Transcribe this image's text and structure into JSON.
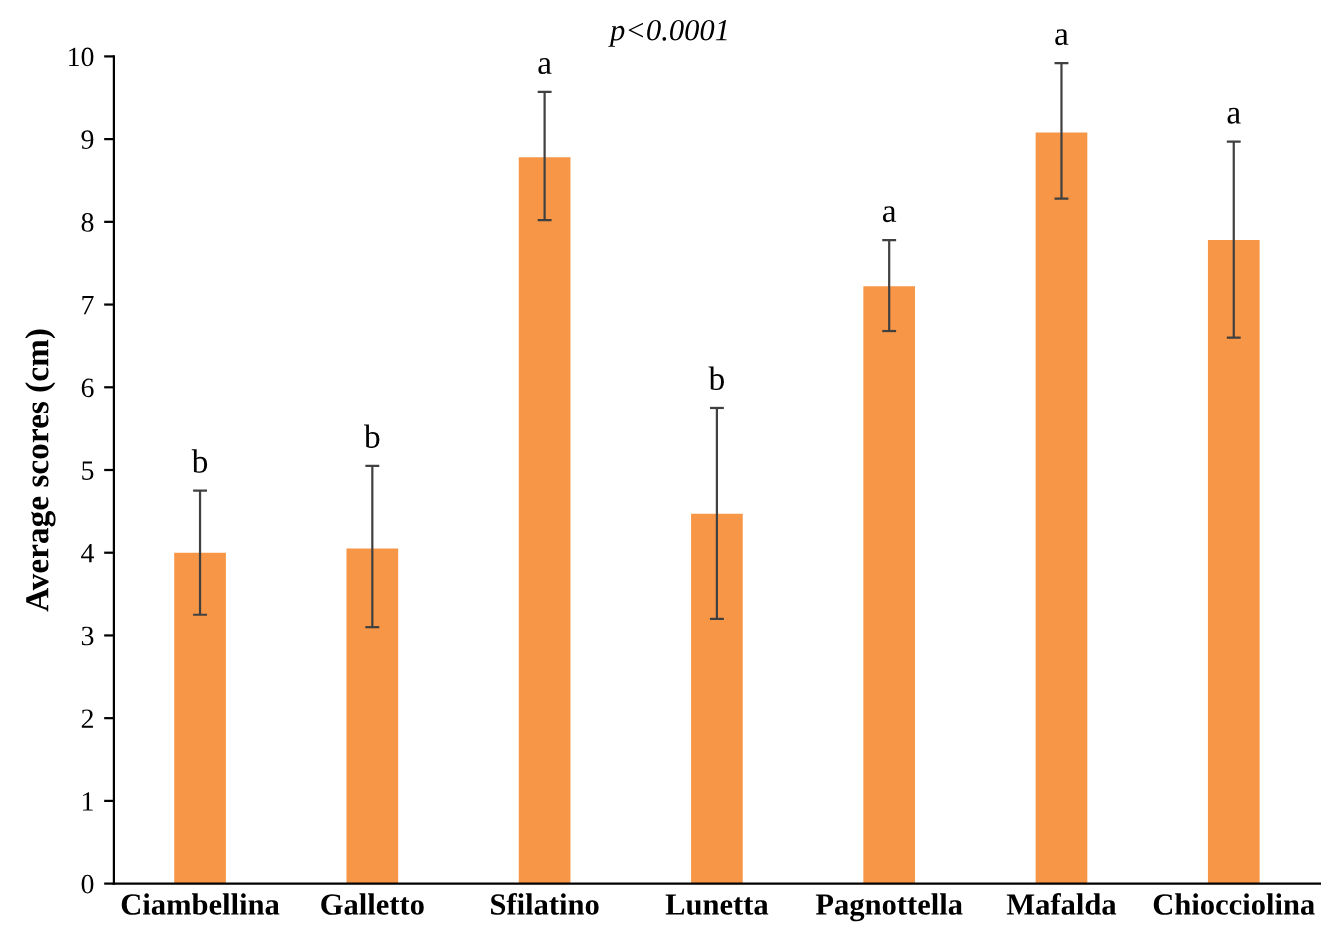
{
  "chart_data": {
    "type": "bar",
    "title": "p<0.0001",
    "ylabel": "Average scores (cm)",
    "categories": [
      "Ciambellina",
      "Galletto",
      "Sfilatino",
      "Lunetta",
      "Pagnottella",
      "Mafalda",
      "Chiocciolina"
    ],
    "series": [
      {
        "color": "#f79646",
        "values": [
          4.0,
          4.05,
          8.78,
          4.47,
          7.22,
          9.08,
          7.78
        ],
        "errors": [
          [
            3.25,
            4.75
          ],
          [
            3.1,
            5.05
          ],
          [
            8.02,
            9.57
          ],
          [
            3.2,
            5.75
          ],
          [
            6.68,
            7.78
          ],
          [
            8.28,
            9.92
          ],
          [
            6.6,
            8.97
          ]
        ]
      }
    ],
    "ylim": [
      0,
      10
    ],
    "yticks": [
      0,
      1,
      2,
      3,
      4,
      5,
      6,
      7,
      8,
      9,
      10
    ],
    "grid": false,
    "legend": false,
    "annotations": [
      {
        "text": "b",
        "x": "Ciambellina",
        "y": 4.75
      },
      {
        "text": "b",
        "x": "Galletto",
        "y": 5.05
      },
      {
        "text": "a",
        "x": "Sfilatino",
        "y": 9.57
      },
      {
        "text": "b",
        "x": "Lunetta",
        "y": 5.75
      },
      {
        "text": "a",
        "x": "Pagnottella",
        "y": 7.78
      },
      {
        "text": "a",
        "x": "Mafalda",
        "y": 9.92
      },
      {
        "text": "a",
        "x": "Chiocciolina",
        "y": 8.97
      }
    ]
  }
}
